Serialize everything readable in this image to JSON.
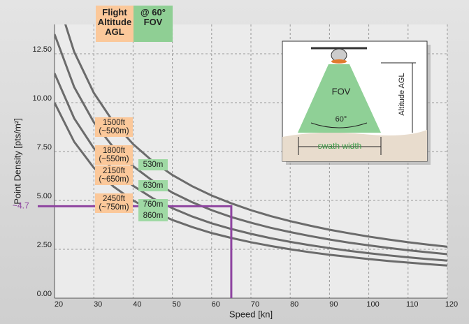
{
  "chart_data": {
    "type": "line",
    "header": {
      "altitude": "Flight\nAltitude\nAGL",
      "fov": "@ 60°\nFOV"
    },
    "x_label": "Speed [kn]",
    "y_label": "Point Density [pts/m²]",
    "xlim": [
      20,
      120
    ],
    "ylim": [
      0,
      14
    ],
    "xticks": [
      20,
      30,
      40,
      50,
      60,
      70,
      80,
      90,
      100,
      110,
      120
    ],
    "yticks": [
      {
        "value": 0,
        "label": "0.00"
      },
      {
        "value": 2.5,
        "label": "2.50"
      },
      {
        "value": 5,
        "label": "5.00"
      },
      {
        "value": 7.5,
        "label": "7.50"
      },
      {
        "value": 10,
        "label": "10.00"
      },
      {
        "value": 12.5,
        "label": "12.50"
      }
    ],
    "grid": true,
    "x": [
      20,
      25,
      30,
      35,
      40,
      45,
      50,
      55,
      60,
      65,
      70,
      75,
      80,
      85,
      90,
      95,
      100,
      105,
      110,
      115,
      120
    ],
    "series": [
      {
        "name": "1500ft\n(~500m)",
        "swath": "530m",
        "color": "#6b6b6b",
        "values": [
          15.75,
          12.6,
          10.5,
          9,
          7.88,
          7,
          6.3,
          5.73,
          5.25,
          4.85,
          4.5,
          4.2,
          3.94,
          3.71,
          3.5,
          3.32,
          3.15,
          3,
          2.86,
          2.74,
          2.63
        ]
      },
      {
        "name": "1800ft\n(~550m)",
        "swath": "630m",
        "color": "#6b6b6b",
        "values": [
          13.5,
          10.8,
          9,
          7.71,
          6.75,
          6,
          5.4,
          4.91,
          4.5,
          4.15,
          3.86,
          3.6,
          3.38,
          3.18,
          3,
          2.84,
          2.7,
          2.57,
          2.45,
          2.35,
          2.25
        ]
      },
      {
        "name": "2150ft\n(~650m)",
        "swath": "760m",
        "color": "#6b6b6b",
        "values": [
          11.5,
          9.2,
          7.67,
          6.57,
          5.75,
          5.11,
          4.6,
          4.18,
          3.83,
          3.54,
          3.29,
          3.07,
          2.88,
          2.71,
          2.56,
          2.42,
          2.3,
          2.19,
          2.09,
          2,
          1.92
        ]
      },
      {
        "name": "2450ft\n(~750m)",
        "swath": "860m",
        "color": "#6b6b6b",
        "values": [
          10,
          8,
          6.67,
          5.71,
          5,
          4.44,
          4,
          3.64,
          3.33,
          3.08,
          2.86,
          2.67,
          2.5,
          2.35,
          2.22,
          2.11,
          2,
          1.9,
          1.82,
          1.74,
          1.67
        ]
      }
    ],
    "marker": {
      "speed": 65,
      "density": 4.7,
      "label": "~4.7",
      "color": "#8e44a0"
    },
    "diagram": {
      "fov": "FOV",
      "angle": "60°",
      "altitude": "Altitude AGL",
      "swath": "swath width"
    }
  }
}
